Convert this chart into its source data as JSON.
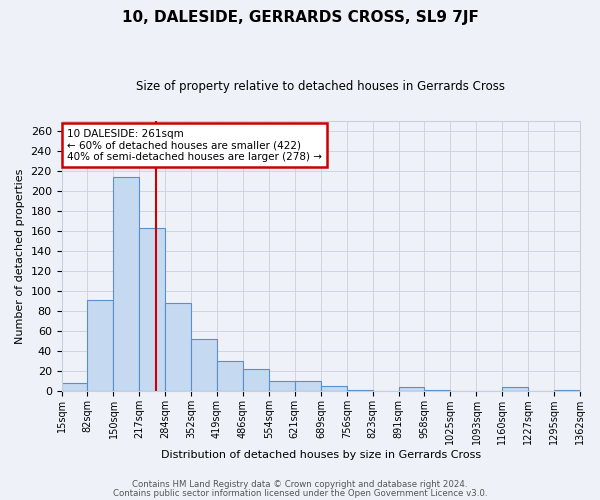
{
  "title": "10, DALESIDE, GERRARDS CROSS, SL9 7JF",
  "subtitle": "Size of property relative to detached houses in Gerrards Cross",
  "xlabel": "Distribution of detached houses by size in Gerrards Cross",
  "ylabel": "Number of detached properties",
  "bar_values": [
    8,
    91,
    214,
    163,
    88,
    52,
    30,
    22,
    10,
    10,
    5,
    1,
    0,
    4,
    1,
    0,
    0,
    4,
    0,
    1
  ],
  "bar_color": "#c5d9f0",
  "bar_edge_color": "#5b8fc9",
  "vline_x": 261,
  "ylim": [
    0,
    270
  ],
  "yticks": [
    0,
    20,
    40,
    60,
    80,
    100,
    120,
    140,
    160,
    180,
    200,
    220,
    240,
    260
  ],
  "annotation_title": "10 DALESIDE: 261sqm",
  "annotation_line1": "← 60% of detached houses are smaller (422)",
  "annotation_line2": "40% of semi-detached houses are larger (278) →",
  "annotation_box_color": "#ffffff",
  "annotation_box_edge": "#cc0000",
  "vline_color": "#cc0000",
  "grid_color": "#c8d0e0",
  "background_color": "#eef2f8",
  "footer1": "Contains HM Land Registry data © Crown copyright and database right 2024.",
  "footer2": "Contains public sector information licensed under the Open Government Licence v3.0.",
  "bin_edges": [
    15,
    82,
    150,
    217,
    284,
    352,
    419,
    486,
    554,
    621,
    689,
    756,
    823,
    891,
    958,
    1025,
    1093,
    1160,
    1227,
    1295,
    1362
  ],
  "bin_labels": [
    "15sqm",
    "82sqm",
    "150sqm",
    "217sqm",
    "284sqm",
    "352sqm",
    "419sqm",
    "486sqm",
    "554sqm",
    "621sqm",
    "689sqm",
    "756sqm",
    "823sqm",
    "891sqm",
    "958sqm",
    "1025sqm",
    "1093sqm",
    "1160sqm",
    "1227sqm",
    "1295sqm",
    "1362sqm"
  ]
}
